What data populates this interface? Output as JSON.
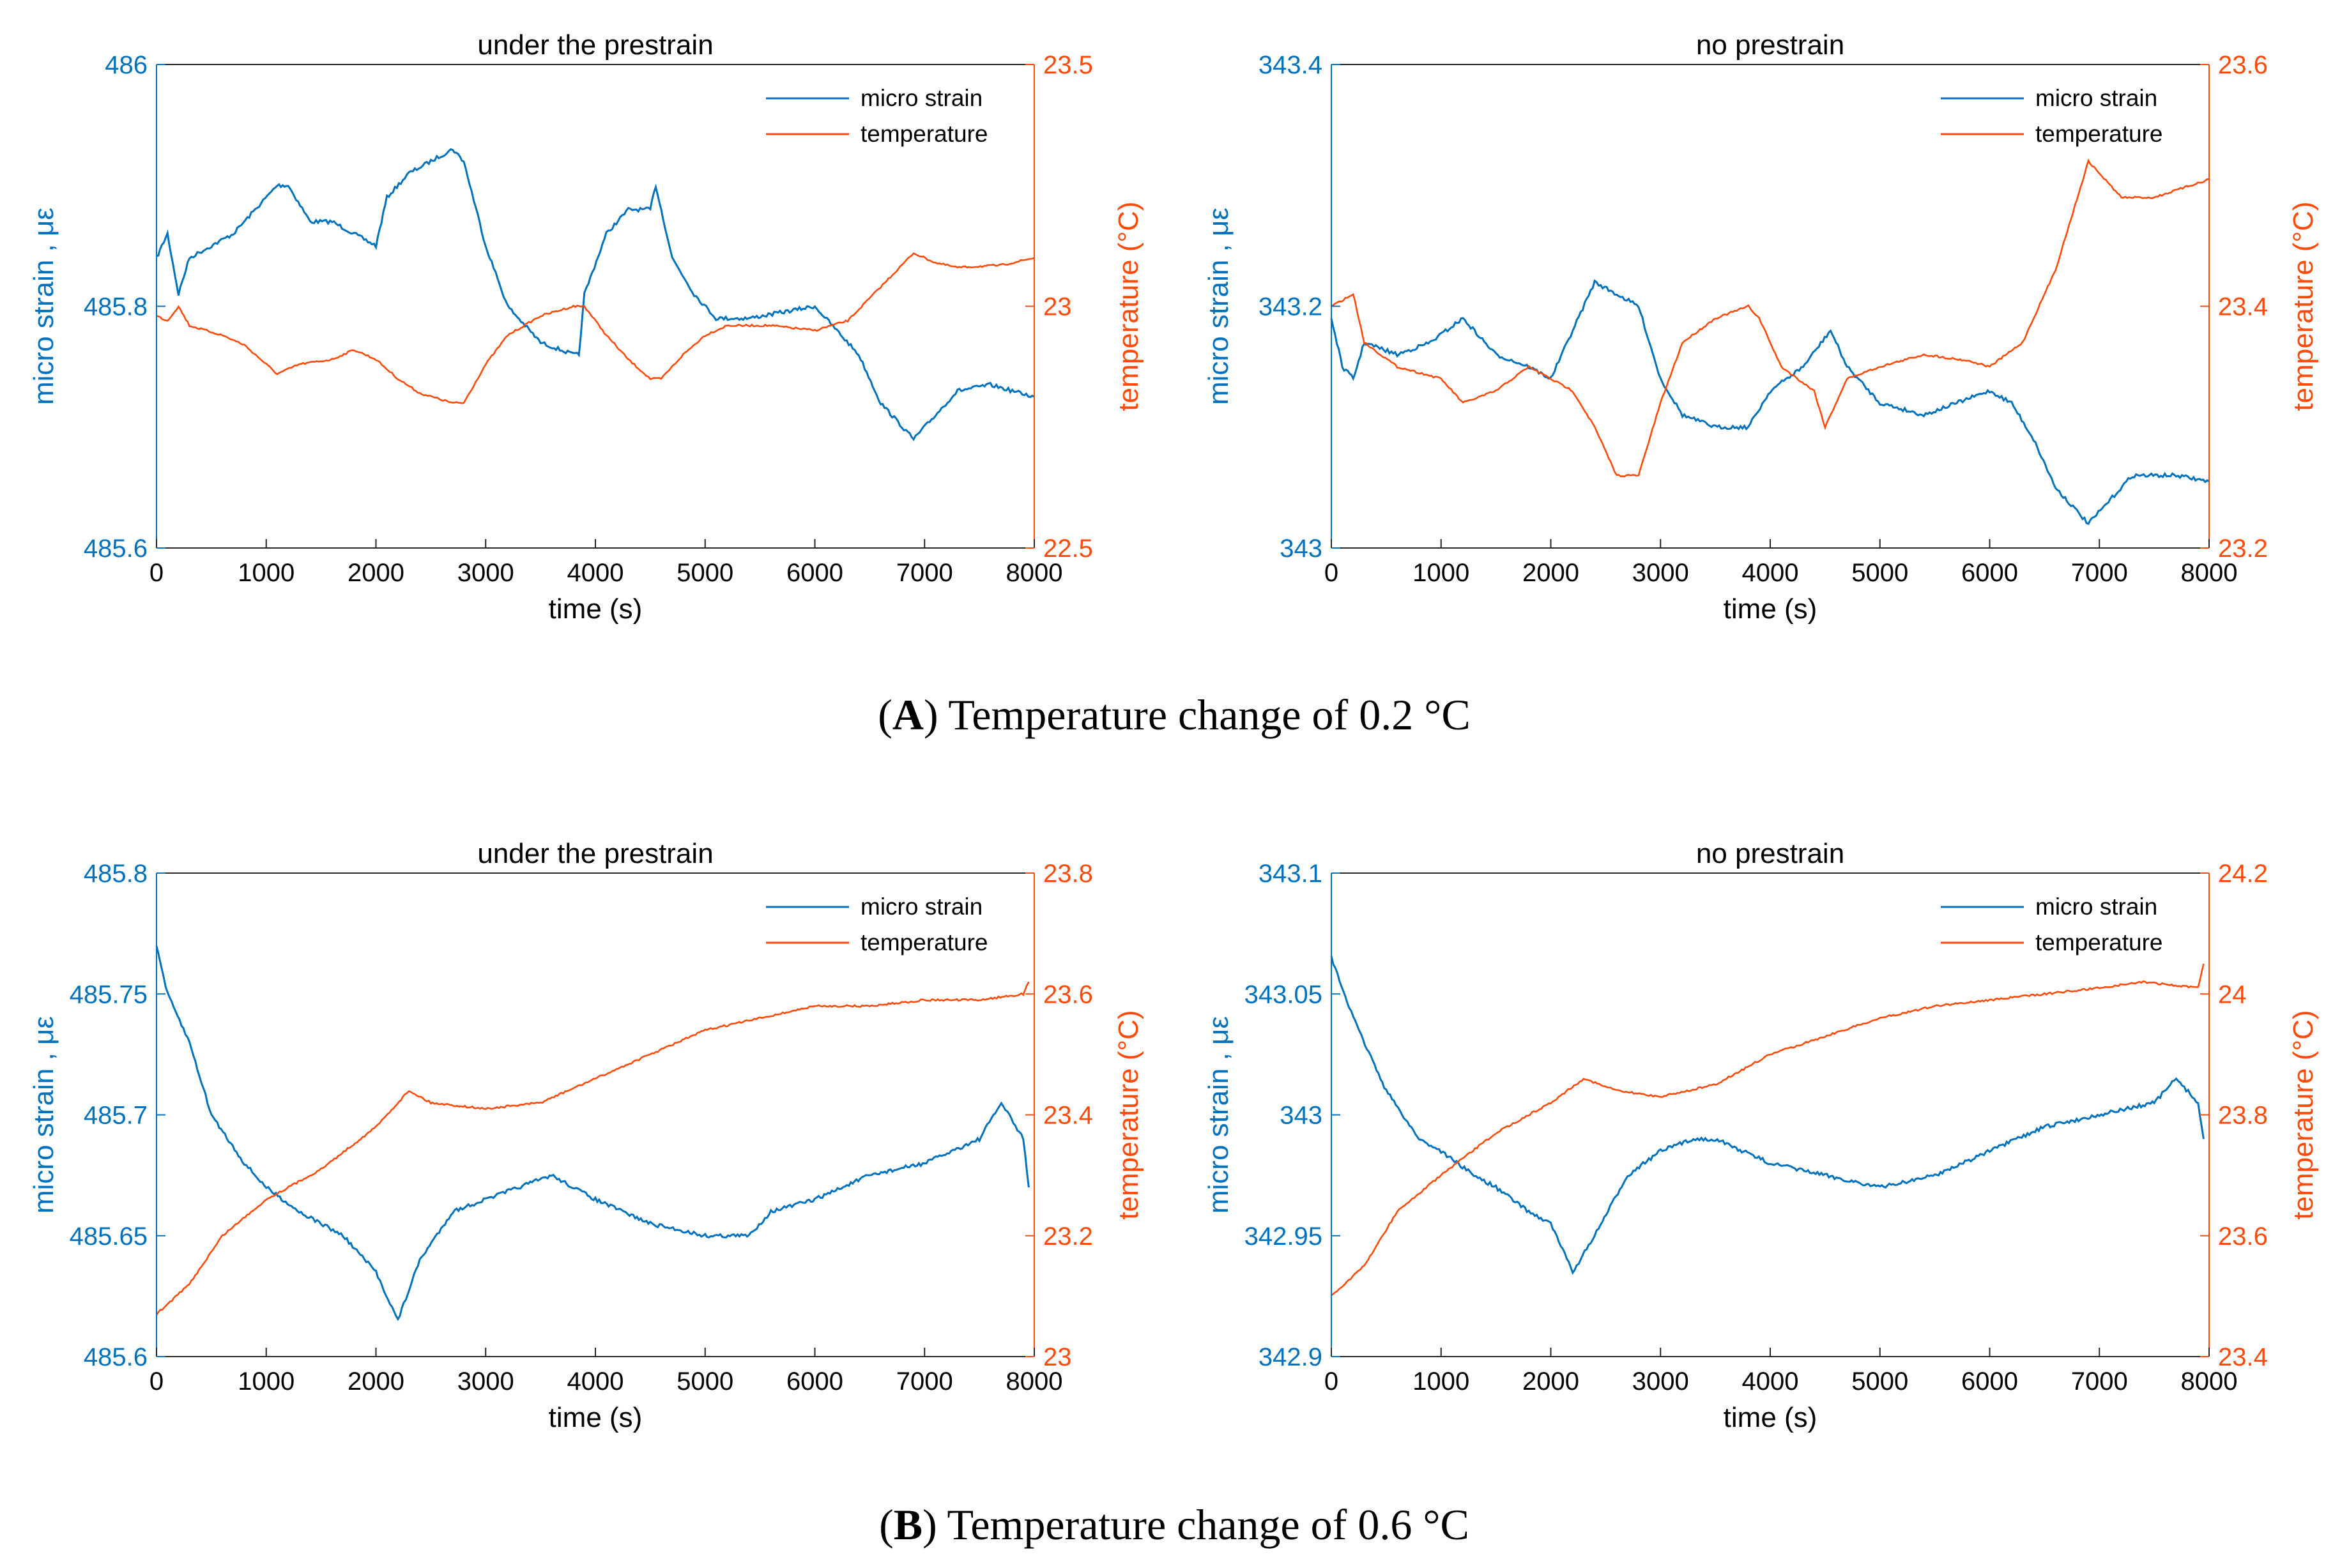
{
  "colors": {
    "strain": "#0072BD",
    "temperature": "#FF4A0A",
    "axis": "#262626"
  },
  "captions": [
    {
      "bold": "A",
      "text": ") Temperature change of 0.2 °C",
      "open": "("
    },
    {
      "bold": "B",
      "text": ") Temperature change of 0.6 °C",
      "open": "("
    }
  ],
  "chart_data": [
    {
      "type": "line",
      "title": "under the prestrain",
      "xlabel": "time (s)",
      "ylabel_left": "micro strain , με",
      "ylabel_right": "temperature (°C)",
      "xlim": [
        0,
        8000
      ],
      "ylim_left": [
        485.6,
        486
      ],
      "ylim_right": [
        22.5,
        23.5
      ],
      "xticks": [
        "0",
        "1000",
        "2000",
        "3000",
        "4000",
        "5000",
        "6000",
        "7000",
        "8000"
      ],
      "yticks_left": [
        "485.6",
        "485.8",
        "486"
      ],
      "yticks_right": [
        "22.5",
        "23",
        "23.5"
      ],
      "legend": [
        "micro strain",
        "temperature"
      ],
      "legend_position": "top-right",
      "series": [
        {
          "name": "micro strain",
          "axis": "left",
          "x": [
            0,
            100,
            200,
            300,
            500,
            700,
            900,
            1100,
            1200,
            1400,
            1600,
            1800,
            2000,
            2100,
            2300,
            2500,
            2700,
            2800,
            3000,
            3200,
            3500,
            3800,
            3850,
            3900,
            4100,
            4300,
            4500,
            4550,
            4700,
            4900,
            5100,
            5400,
            5700,
            6000,
            6200,
            6400,
            6600,
            6900,
            7100,
            7300,
            7600,
            7800,
            8000
          ],
          "y": [
            485.84,
            485.86,
            485.81,
            485.84,
            485.85,
            485.86,
            485.88,
            485.9,
            485.9,
            485.87,
            485.87,
            485.86,
            485.85,
            485.89,
            485.91,
            485.92,
            485.93,
            485.92,
            485.85,
            485.8,
            485.77,
            485.76,
            485.76,
            485.81,
            485.86,
            485.88,
            485.88,
            485.9,
            485.84,
            485.81,
            485.79,
            485.79,
            485.795,
            485.8,
            485.78,
            485.76,
            485.72,
            485.69,
            485.71,
            485.73,
            485.735,
            485.73,
            485.725
          ]
        },
        {
          "name": "temperature",
          "axis": "right",
          "x": [
            0,
            100,
            200,
            300,
            600,
            800,
            1000,
            1100,
            1300,
            1600,
            1800,
            2000,
            2200,
            2400,
            2700,
            2800,
            3000,
            3200,
            3500,
            3800,
            3900,
            4100,
            4300,
            4500,
            4600,
            4800,
            5000,
            5200,
            5600,
            6000,
            6300,
            6600,
            6900,
            7100,
            7300,
            7700,
            8000
          ],
          "y": [
            22.98,
            22.97,
            23.0,
            22.96,
            22.94,
            22.92,
            22.88,
            22.86,
            22.88,
            22.89,
            22.91,
            22.89,
            22.85,
            22.82,
            22.8,
            22.8,
            22.88,
            22.94,
            22.98,
            23.0,
            23.0,
            22.94,
            22.89,
            22.85,
            22.85,
            22.9,
            22.94,
            22.96,
            22.96,
            22.95,
            22.97,
            23.04,
            23.11,
            23.09,
            23.08,
            23.085,
            23.1
          ]
        }
      ]
    },
    {
      "type": "line",
      "title": "no prestrain",
      "xlabel": "time (s)",
      "ylabel_left": "micro strain , με",
      "ylabel_right": "temperature (°C)",
      "xlim": [
        0,
        8000
      ],
      "ylim_left": [
        343,
        343.4
      ],
      "ylim_right": [
        23.2,
        23.6
      ],
      "xticks": [
        "0",
        "1000",
        "2000",
        "3000",
        "4000",
        "5000",
        "6000",
        "7000",
        "8000"
      ],
      "yticks_left": [
        "343",
        "343.2",
        "343.4"
      ],
      "yticks_right": [
        "23.2",
        "23.4",
        "23.6"
      ],
      "legend": [
        "micro strain",
        "temperature"
      ],
      "legend_position": "top-right",
      "series": [
        {
          "name": "micro strain",
          "axis": "left",
          "x": [
            0,
            100,
            200,
            300,
            600,
            900,
            1200,
            1500,
            1800,
            2000,
            2200,
            2400,
            2600,
            2800,
            3000,
            3200,
            3500,
            3800,
            4000,
            4300,
            4550,
            4700,
            5000,
            5400,
            5700,
            6000,
            6200,
            6400,
            6600,
            6900,
            7100,
            7300,
            7700,
            8000
          ],
          "y": [
            343.19,
            343.15,
            343.14,
            343.17,
            343.16,
            343.17,
            343.19,
            343.16,
            343.15,
            343.14,
            343.18,
            343.22,
            343.21,
            343.2,
            343.14,
            343.11,
            343.1,
            343.1,
            343.13,
            343.15,
            343.18,
            343.15,
            343.12,
            343.11,
            343.12,
            343.13,
            343.12,
            343.09,
            343.05,
            343.02,
            343.04,
            343.06,
            343.06,
            343.055
          ]
        },
        {
          "name": "temperature",
          "axis": "right",
          "x": [
            0,
            200,
            300,
            600,
            1000,
            1200,
            1500,
            1800,
            2000,
            2200,
            2400,
            2600,
            2800,
            3000,
            3200,
            3500,
            3800,
            3900,
            4100,
            4400,
            4500,
            4700,
            5000,
            5400,
            5800,
            6000,
            6300,
            6600,
            6900,
            7200,
            7500,
            8000
          ],
          "y": [
            23.4,
            23.41,
            23.37,
            23.35,
            23.34,
            23.32,
            23.33,
            23.35,
            23.34,
            23.33,
            23.3,
            23.26,
            23.26,
            23.32,
            23.37,
            23.39,
            23.4,
            23.39,
            23.35,
            23.33,
            23.3,
            23.34,
            23.35,
            23.36,
            23.355,
            23.35,
            23.37,
            23.43,
            23.52,
            23.49,
            23.49,
            23.505
          ]
        }
      ]
    },
    {
      "type": "line",
      "title": "under the prestrain",
      "xlabel": "time (s)",
      "ylabel_left": "micro strain , με",
      "ylabel_right": "temperature (°C)",
      "xlim": [
        0,
        8000
      ],
      "ylim_left": [
        485.6,
        485.8
      ],
      "ylim_right": [
        23,
        23.8
      ],
      "xticks": [
        "0",
        "1000",
        "2000",
        "3000",
        "4000",
        "5000",
        "6000",
        "7000",
        "8000"
      ],
      "yticks_left": [
        "485.6",
        "485.65",
        "485.7",
        "485.75",
        "485.8"
      ],
      "yticks_right": [
        "23",
        "23.2",
        "23.4",
        "23.6",
        "23.8"
      ],
      "legend": [
        "micro strain",
        "temperature"
      ],
      "legend_position": "top-right",
      "series": [
        {
          "name": "micro strain",
          "axis": "left",
          "x": [
            0,
            100,
            300,
            500,
            800,
            1000,
            1300,
            1500,
            1700,
            2000,
            2200,
            2400,
            2700,
            3000,
            3300,
            3600,
            4000,
            4500,
            5000,
            5400,
            5600,
            6000,
            6500,
            7000,
            7500,
            7700,
            7900,
            7950
          ],
          "y": [
            485.77,
            485.75,
            485.73,
            485.7,
            485.68,
            485.67,
            485.66,
            485.655,
            485.65,
            485.635,
            485.615,
            485.64,
            485.66,
            485.665,
            485.67,
            485.675,
            485.665,
            485.655,
            485.65,
            485.65,
            485.66,
            485.665,
            485.675,
            485.68,
            485.69,
            485.705,
            485.69,
            485.67
          ]
        },
        {
          "name": "temperature",
          "axis": "right",
          "x": [
            0,
            300,
            600,
            1000,
            1500,
            2000,
            2300,
            2500,
            3000,
            3500,
            4000,
            4500,
            5000,
            5500,
            6000,
            6500,
            7000,
            7500,
            7900,
            7950
          ],
          "y": [
            23.07,
            23.12,
            23.2,
            23.26,
            23.31,
            23.38,
            23.44,
            23.42,
            23.41,
            23.42,
            23.46,
            23.5,
            23.54,
            23.56,
            23.58,
            23.58,
            23.59,
            23.59,
            23.6,
            23.62
          ]
        }
      ]
    },
    {
      "type": "line",
      "title": "no prestrain",
      "xlabel": "time (s)",
      "ylabel_left": "micro strain , με",
      "ylabel_right": "temperature (°C)",
      "xlim": [
        0,
        8000
      ],
      "ylim_left": [
        342.9,
        343.1
      ],
      "ylim_right": [
        23.4,
        24.2
      ],
      "xticks": [
        "0",
        "1000",
        "2000",
        "3000",
        "4000",
        "5000",
        "6000",
        "7000",
        "8000"
      ],
      "yticks_left": [
        "342.9",
        "342.95",
        "343",
        "343.05",
        "343.1"
      ],
      "yticks_right": [
        "23.4",
        "23.6",
        "23.8",
        "24",
        "24.2"
      ],
      "legend": [
        "micro strain",
        "temperature"
      ],
      "legend_position": "top-right",
      "series": [
        {
          "name": "micro strain",
          "axis": "left",
          "x": [
            0,
            200,
            500,
            800,
            1000,
            1300,
            1500,
            1800,
            2000,
            2200,
            2400,
            2700,
            3000,
            3300,
            3500,
            4000,
            4500,
            5000,
            5500,
            6000,
            6500,
            7000,
            7500,
            7700,
            7900,
            7950
          ],
          "y": [
            343.065,
            343.04,
            343.01,
            342.99,
            342.985,
            342.975,
            342.97,
            342.96,
            342.955,
            342.935,
            342.95,
            342.975,
            342.985,
            342.99,
            342.99,
            342.98,
            342.975,
            342.97,
            342.975,
            342.985,
            342.995,
            343.0,
            343.005,
            343.015,
            343.005,
            342.99
          ]
        },
        {
          "name": "temperature",
          "axis": "right",
          "x": [
            0,
            300,
            600,
            1000,
            1500,
            2000,
            2300,
            2600,
            3000,
            3500,
            4000,
            4500,
            5000,
            5500,
            6000,
            6500,
            7000,
            7400,
            7900,
            7950
          ],
          "y": [
            23.5,
            23.55,
            23.64,
            23.7,
            23.77,
            23.82,
            23.86,
            23.84,
            23.83,
            23.85,
            23.9,
            23.93,
            23.96,
            23.98,
            23.99,
            24.0,
            24.01,
            24.02,
            24.01,
            24.05
          ]
        }
      ]
    }
  ]
}
